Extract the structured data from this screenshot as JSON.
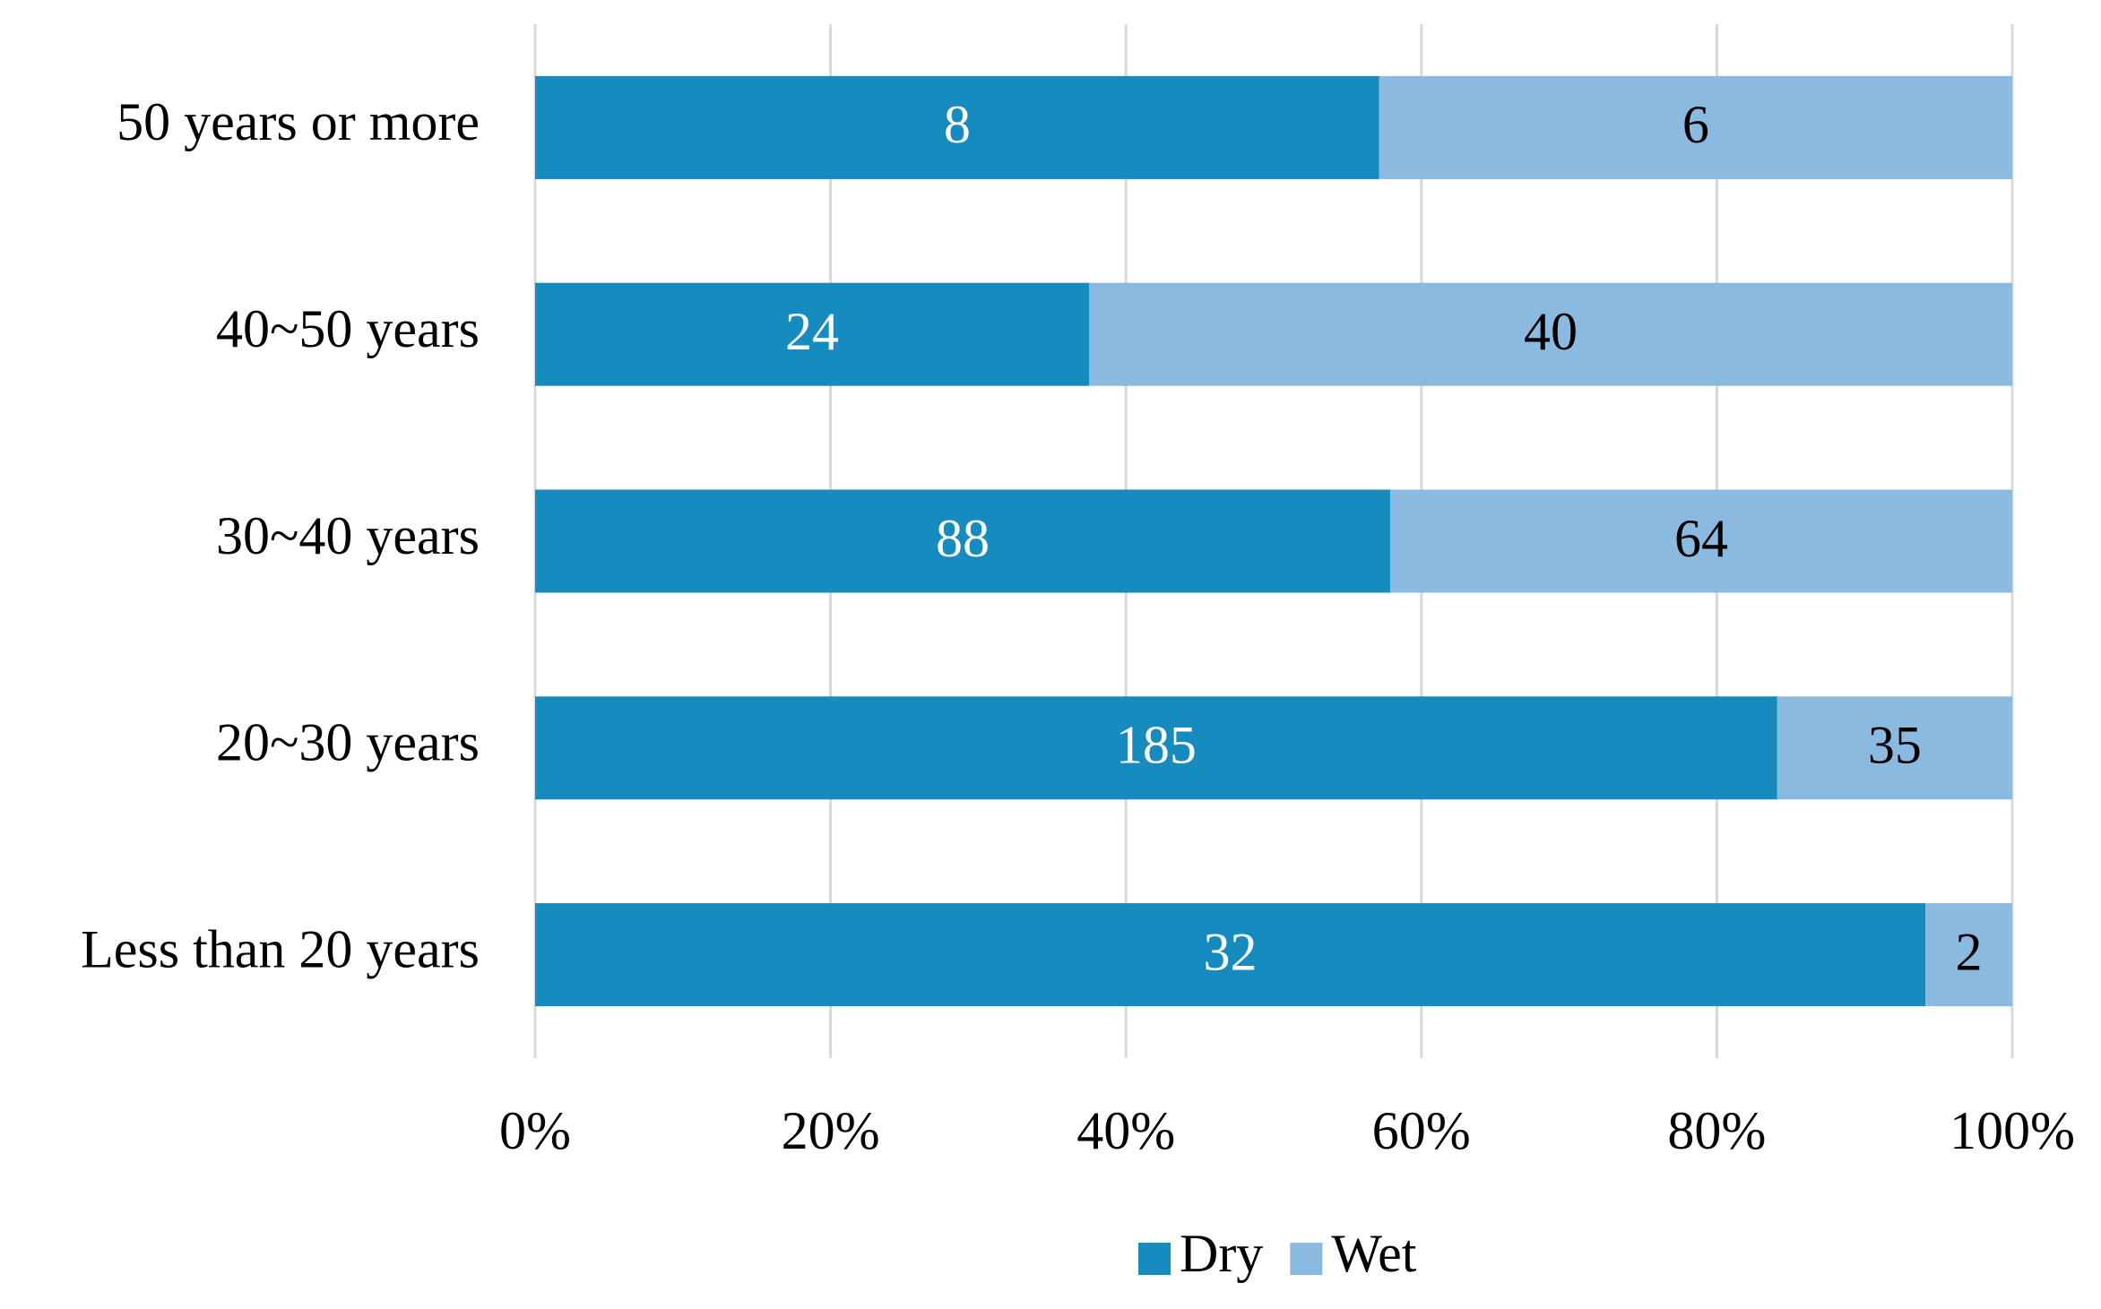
{
  "chart_data": {
    "type": "bar",
    "orientation": "horizontal",
    "stacking": "percent",
    "categories": [
      "50 years or more",
      "40~50 years",
      "30~40 years",
      "20~30 years",
      "Less than 20 years"
    ],
    "series": [
      {
        "name": "Dry",
        "color": "#168bbf",
        "values": [
          8,
          24,
          88,
          185,
          32
        ]
      },
      {
        "name": "Wet",
        "color": "#8bbae0",
        "values": [
          6,
          40,
          64,
          35,
          2
        ]
      }
    ],
    "xlim": [
      0,
      100
    ],
    "xticks": [
      {
        "value": 0,
        "label": "0%"
      },
      {
        "value": 20,
        "label": "20%"
      },
      {
        "value": 40,
        "label": "40%"
      },
      {
        "value": 60,
        "label": "60%"
      },
      {
        "value": 80,
        "label": "80%"
      },
      {
        "value": 100,
        "label": "100%"
      }
    ],
    "grid": true,
    "legend": "bottom"
  }
}
